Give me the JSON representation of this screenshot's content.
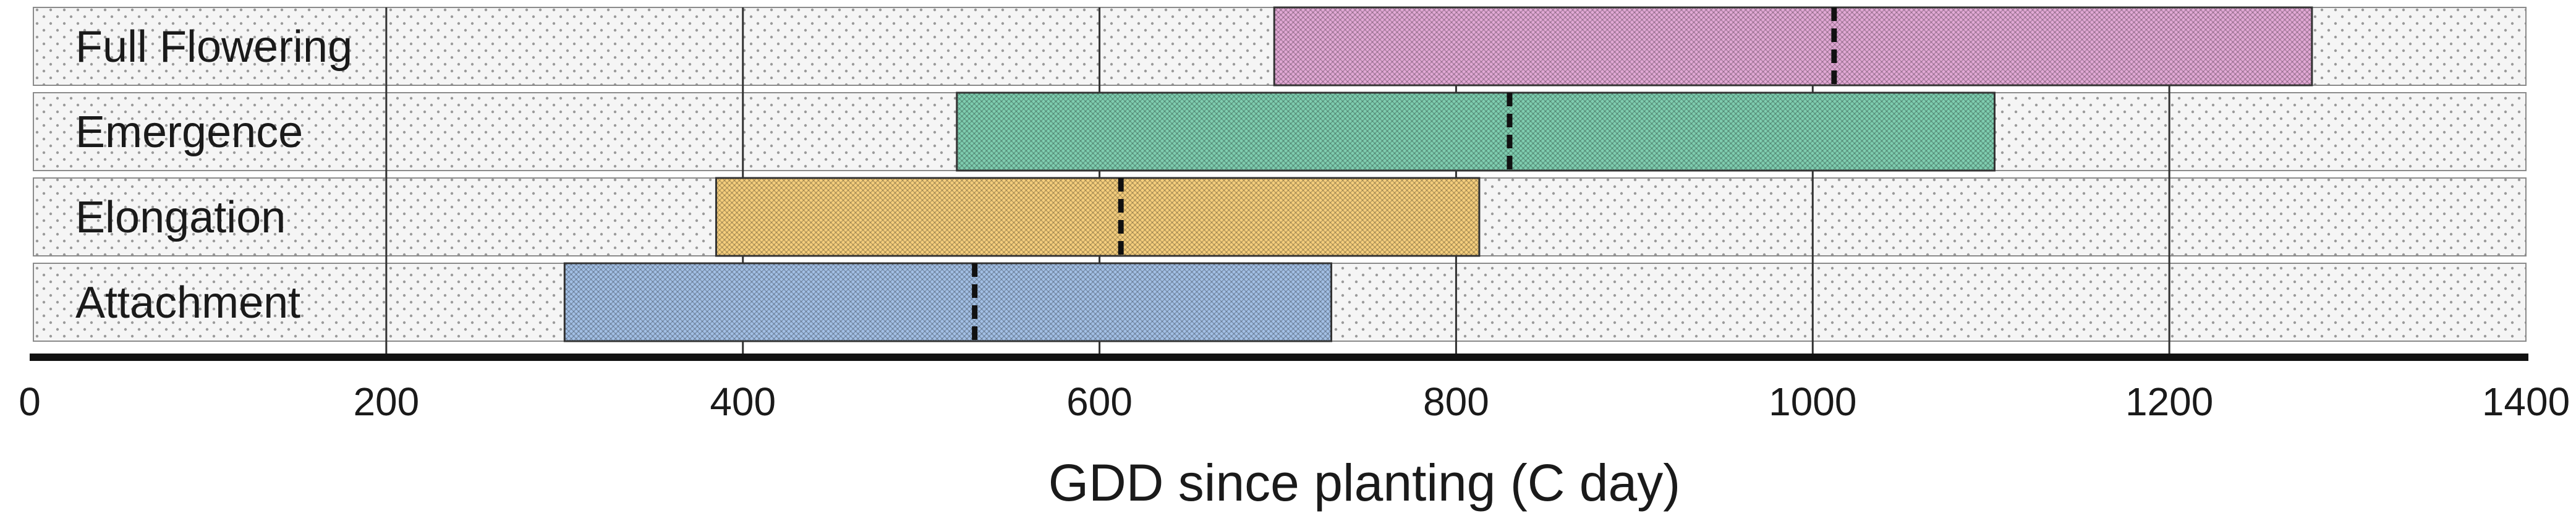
{
  "chart_data": {
    "type": "bar",
    "subtype": "floating-range",
    "title": "",
    "xlabel": "GDD since planting (C day)",
    "ylabel": "",
    "xlim": [
      0,
      1400
    ],
    "xticks": [
      0,
      200,
      400,
      600,
      800,
      1000,
      1200,
      1400
    ],
    "grid": true,
    "categories": [
      "Full Flowering",
      "Emergence",
      "Elongation",
      "Attachment"
    ],
    "series": [
      {
        "name": "Full Flowering",
        "start": 698,
        "end": 1280,
        "median": 1012,
        "color": "#e3a9d6"
      },
      {
        "name": "Emergence",
        "start": 520,
        "end": 1102,
        "median": 830,
        "color": "#7fceb0"
      },
      {
        "name": "Elongation",
        "start": 385,
        "end": 813,
        "median": 612,
        "color": "#f6cf7d"
      },
      {
        "name": "Attachment",
        "start": 300,
        "end": 730,
        "median": 530,
        "color": "#a3c0e6"
      }
    ]
  }
}
